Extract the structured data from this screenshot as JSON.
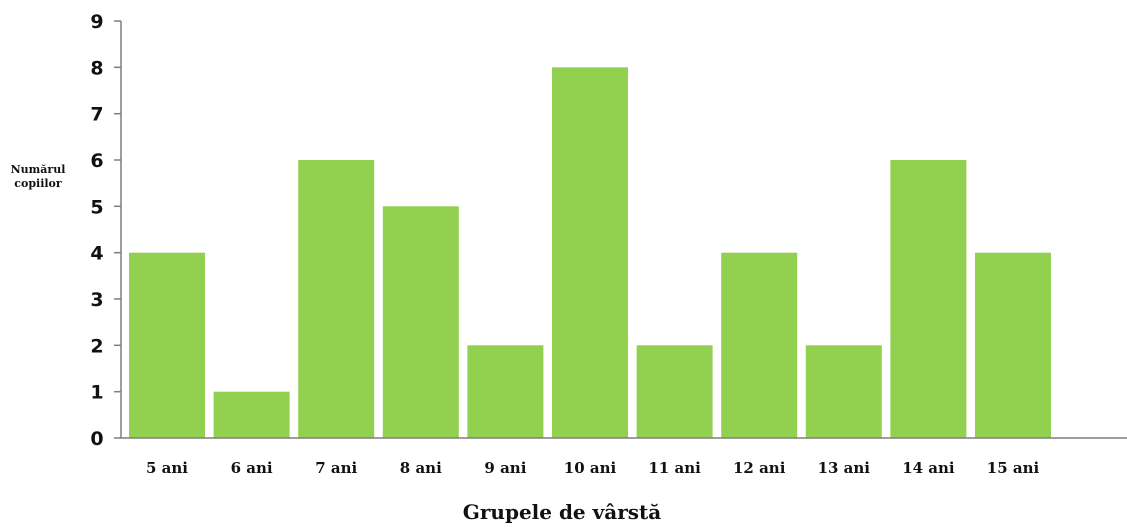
{
  "chart_data": {
    "type": "bar",
    "categories": [
      "5 ani",
      "6 ani",
      "7 ani",
      "8 ani",
      "9 ani",
      "10 ani",
      "11 ani",
      "12 ani",
      "13 ani",
      "14 ani",
      "15 ani"
    ],
    "values": [
      4,
      1,
      6,
      5,
      2,
      8,
      2,
      4,
      2,
      6,
      4
    ],
    "ylabel_line1": "Numărul",
    "ylabel_line2": "copiilor",
    "xlabel": "Grupele de vârstă",
    "ylim": [
      0,
      9
    ],
    "yticks": [
      "0",
      "1",
      "2",
      "3",
      "4",
      "5",
      "6",
      "7",
      "8",
      "9"
    ],
    "bar_color": "#92d050",
    "axis_color": "#7f7f7f",
    "grid": false,
    "legend": "none"
  }
}
